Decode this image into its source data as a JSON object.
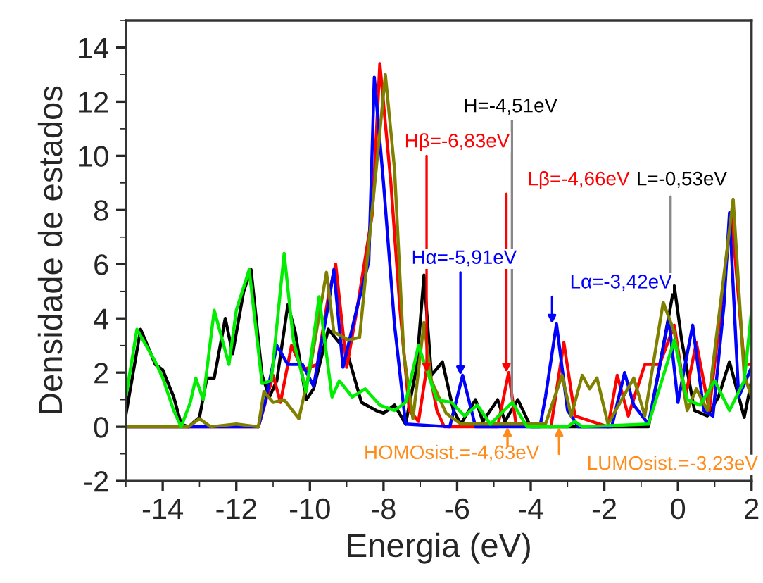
{
  "chart_data": {
    "type": "line",
    "xlabel": "Energia (eV)",
    "ylabel": "Densidade de estados",
    "xlim": [
      -15,
      2
    ],
    "ylim": [
      -2,
      15
    ],
    "xticks": [
      -14,
      -12,
      -10,
      -8,
      -6,
      -4,
      -2,
      0,
      2
    ],
    "yticks": [
      -2,
      0,
      2,
      4,
      6,
      8,
      10,
      12,
      14
    ],
    "grid": false,
    "legend": false,
    "marker": "none",
    "line_style": "solid",
    "series": [
      {
        "color": "#000000",
        "x": [
          -15,
          -14.6,
          -14.2,
          -14.0,
          -13.7,
          -13.5,
          -13.3,
          -13.0,
          -12.8,
          -12.6,
          -12.3,
          -12.1,
          -11.8,
          -11.6,
          -11.3,
          -11.1,
          -10.9,
          -10.6,
          -10.4,
          -10.1,
          -9.9,
          -9.5,
          -9.2,
          -9.0,
          -8.6,
          -8.2,
          -8.0,
          -7.7,
          -7.4,
          -7.1,
          -6.9,
          -6.7,
          -6.4,
          -6.1,
          -5.9,
          -5.5,
          -5.3,
          -4.9,
          -4.7,
          -4.35,
          -4.0,
          -3.0,
          -2.0,
          -0.8,
          -0.1,
          0.1,
          0.45,
          0.8,
          1.1,
          1.4,
          1.8,
          2.0
        ],
        "values": [
          0.45,
          3.6,
          2.3,
          2.1,
          1.1,
          0.1,
          0,
          0.35,
          1.8,
          1.8,
          4.0,
          2.7,
          5.0,
          5.8,
          1.9,
          1.1,
          1.7,
          4.5,
          3.5,
          1.0,
          1.4,
          3.6,
          3.1,
          2.8,
          0.9,
          0.6,
          0.5,
          0.8,
          0.1,
          2.2,
          5.6,
          1.9,
          2.4,
          0.6,
          0.1,
          1.0,
          0.2,
          1.0,
          0.2,
          1.0,
          0,
          0,
          0,
          0,
          5.2,
          3.2,
          0.6,
          0.4,
          1.1,
          2.4,
          0.35,
          1.7
        ]
      },
      {
        "color": "#ff0000",
        "x": [
          -15,
          -11.4,
          -11.0,
          -10.8,
          -10.5,
          -10.2,
          -9.8,
          -9.5,
          -9.3,
          -9.0,
          -8.7,
          -8.3,
          -8.1,
          -7.8,
          -7.55,
          -7.3,
          -7.05,
          -6.8,
          -6.55,
          -6.35,
          -4.9,
          -4.6,
          -4.4,
          -3.45,
          -3.1,
          -2.8,
          -1.9,
          -1.65,
          -1.35,
          -0.9,
          -0.5,
          -0.1,
          0.2,
          0.5,
          0.85,
          1.25,
          1.45,
          1.8,
          2.0
        ],
        "values": [
          0,
          0,
          1.9,
          0.9,
          3.0,
          2.1,
          2.3,
          4.8,
          6.0,
          2.2,
          4.5,
          7.9,
          13.4,
          9.0,
          4.3,
          0.6,
          0.2,
          2.4,
          0.6,
          0,
          0,
          2.0,
          0.1,
          0,
          3.1,
          0.4,
          0,
          1.9,
          0.4,
          2.3,
          2.3,
          3.75,
          1.1,
          3.1,
          0.6,
          5.3,
          7.9,
          2.3,
          2.3
        ]
      },
      {
        "color": "#0000ff",
        "x": [
          -15,
          -11.4,
          -11.2,
          -10.9,
          -10.6,
          -10.2,
          -9.9,
          -9.5,
          -9.35,
          -9.1,
          -8.7,
          -8.4,
          -8.25,
          -8.0,
          -7.7,
          -7.4,
          -6.2,
          -5.85,
          -5.5,
          -3.75,
          -3.6,
          -3.3,
          -3.0,
          -2.7,
          -1.8,
          -1.45,
          -1.2,
          -0.8,
          -0.25,
          0.0,
          0.4,
          0.7,
          0.95,
          1.25,
          1.4,
          1.65,
          2.0
        ],
        "values": [
          0,
          0,
          1.0,
          3.0,
          2.3,
          2.3,
          1.5,
          4.5,
          5.8,
          2.2,
          4.5,
          6.1,
          12.9,
          9.0,
          3.75,
          0.1,
          0,
          1.9,
          0,
          0,
          1.1,
          3.8,
          0.6,
          0,
          0,
          2.0,
          0.8,
          0.1,
          4.0,
          0.9,
          3.75,
          0.6,
          0.4,
          4.5,
          7.9,
          1.1,
          2.2
        ]
      },
      {
        "color": "#808000",
        "x": [
          -15,
          -13.3,
          -13.0,
          -12.7,
          -12.0,
          -11.4,
          -11.25,
          -11.0,
          -10.7,
          -10.3,
          -10.0,
          -9.55,
          -9.35,
          -8.95,
          -8.65,
          -8.2,
          -7.95,
          -7.7,
          -7.45,
          -7.2,
          -6.9,
          -6.7,
          -6.3,
          -5.9,
          -3.6,
          -3.15,
          -2.9,
          -2.6,
          -2.4,
          -2.2,
          -1.9,
          -1.2,
          -0.9,
          -0.4,
          -0.1,
          0.25,
          0.5,
          0.8,
          1.25,
          1.5,
          1.8,
          2.0
        ],
        "values": [
          0,
          0,
          0.3,
          0,
          0.1,
          0,
          1.3,
          0.9,
          1.0,
          0.3,
          2.1,
          5.7,
          3.5,
          3.2,
          3.3,
          9.5,
          13.0,
          9.5,
          2.7,
          0.3,
          3.85,
          1.7,
          0.5,
          0.1,
          0.1,
          1.9,
          0.4,
          1.9,
          1.4,
          1.8,
          0.1,
          1.8,
          0.4,
          4.6,
          3.5,
          0.6,
          1.4,
          0.6,
          5.6,
          8.4,
          1.9,
          1.1
        ]
      },
      {
        "color": "#00ee00",
        "x": [
          -15,
          -14.7,
          -14.2,
          -14.0,
          -13.7,
          -13.5,
          -13.25,
          -13.1,
          -12.9,
          -12.6,
          -12.2,
          -12.0,
          -11.65,
          -11.3,
          -11.05,
          -10.7,
          -10.45,
          -10.1,
          -9.75,
          -9.4,
          -9.2,
          -8.85,
          -8.5,
          -8.1,
          -7.7,
          -7.4,
          -7.05,
          -6.8,
          -6.55,
          -6.15,
          -5.8,
          -5.45,
          -5.1,
          -4.5,
          -4.1,
          -3.0,
          -2.8,
          -2.6,
          -0.8,
          -0.1,
          0.25,
          0.6,
          1.0,
          1.4,
          1.8,
          2.0
        ],
        "values": [
          1.1,
          3.6,
          2.4,
          1.8,
          0.6,
          0,
          0.9,
          1.8,
          1.0,
          4.3,
          2.3,
          4.3,
          5.8,
          1.6,
          1.7,
          6.4,
          3.2,
          1.3,
          4.8,
          1.1,
          1.7,
          1.1,
          1.4,
          0.8,
          0.6,
          0.9,
          3.0,
          2.0,
          1.0,
          0.9,
          0.4,
          0.8,
          0.1,
          0.9,
          0,
          0,
          0.2,
          0,
          0.1,
          3.2,
          1.0,
          0.8,
          1.7,
          0.6,
          1.7,
          4.3
        ]
      }
    ],
    "annotations": [
      {
        "text": "H=-4,51eV",
        "x": -4.51,
        "y": 1.0
      },
      {
        "text": "Hβ=-6,83eV",
        "x": -6.83,
        "y": 2.0
      },
      {
        "text": "Lβ=-4,66eV",
        "x": -4.66,
        "y": 2.0
      },
      {
        "text": "L=-0,53eV",
        "x": -0.2,
        "y": 5.2
      },
      {
        "text": "Hα=-5,91eV",
        "x": -5.91,
        "y": 1.9
      },
      {
        "text": "Lα=-3,42eV",
        "x": -3.42,
        "y": 3.8
      },
      {
        "text": "HOMOsist.=-4,63eV",
        "x": -4.63,
        "y": 0
      },
      {
        "text": "LUMOsist.=-3,23eV",
        "x": -3.23,
        "y": 0
      }
    ]
  }
}
